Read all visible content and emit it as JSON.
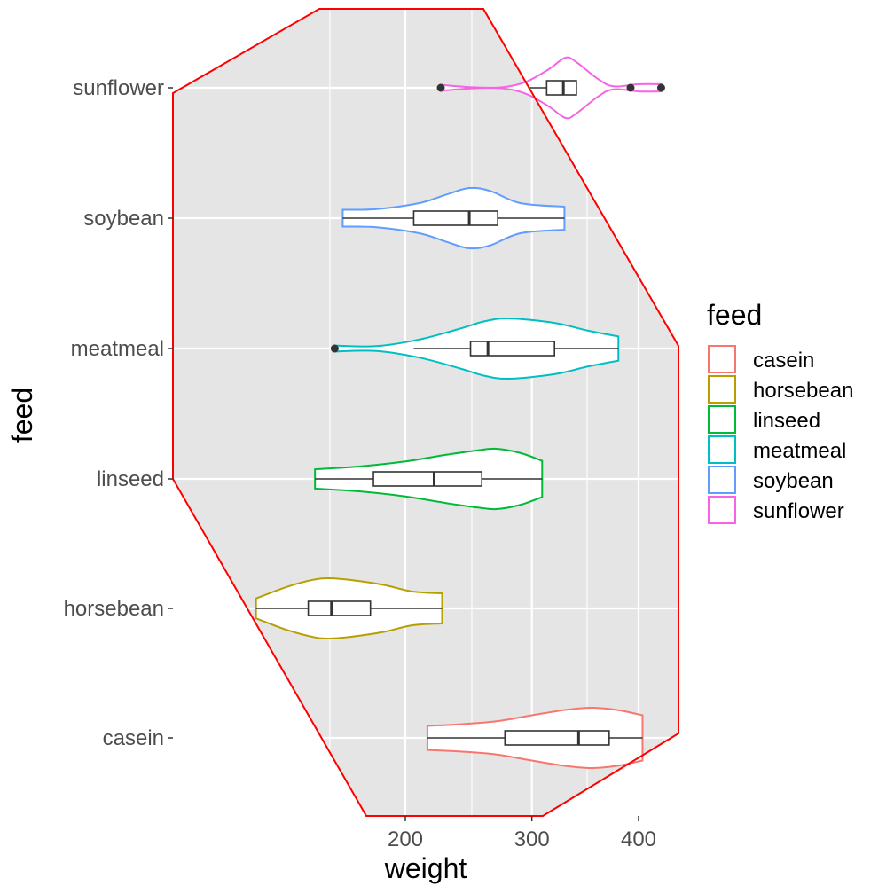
{
  "chart_data": {
    "type": "violin",
    "title": "",
    "xlabel": "weight",
    "ylabel": "feed",
    "x_scale": "sqrt",
    "xlim": [
      130,
      450
    ],
    "x_ticks": [
      200,
      300,
      400
    ],
    "x_tick_labels": [
      "200",
      "300",
      "400"
    ],
    "categories": [
      "casein",
      "horsebean",
      "linseed",
      "meatmeal",
      "soybean",
      "sunflower"
    ],
    "legend": {
      "title": "feed",
      "position": "right",
      "labels": [
        "casein",
        "horsebean",
        "linseed",
        "meatmeal",
        "soybean",
        "sunflower"
      ]
    },
    "series": [
      {
        "name": "casein",
        "color": "#F8766D",
        "violin": [
          [
            216,
            0.4
          ],
          [
            240,
            0.45
          ],
          [
            270,
            0.55
          ],
          [
            300,
            0.75
          ],
          [
            330,
            0.93
          ],
          [
            355,
            1.0
          ],
          [
            380,
            0.92
          ],
          [
            404,
            0.75
          ]
        ],
        "box": {
          "low": 216,
          "q1": 277,
          "median": 342,
          "q3": 371,
          "high": 404
        },
        "outliers": []
      },
      {
        "name": "horsebean",
        "color": "#B79F00",
        "violin": [
          [
            108,
            0.33
          ],
          [
            125,
            0.72
          ],
          [
            140,
            0.95
          ],
          [
            150,
            1.0
          ],
          [
            165,
            0.93
          ],
          [
            185,
            0.78
          ],
          [
            205,
            0.56
          ],
          [
            227,
            0.5
          ]
        ],
        "box": {
          "low": 108,
          "q1": 137,
          "median": 151,
          "q3": 176,
          "high": 227
        },
        "outliers": []
      },
      {
        "name": "linseed",
        "color": "#00BA38",
        "violin": [
          [
            141,
            0.32
          ],
          [
            170,
            0.42
          ],
          [
            200,
            0.58
          ],
          [
            230,
            0.8
          ],
          [
            255,
            0.95
          ],
          [
            270,
            1.0
          ],
          [
            290,
            0.86
          ],
          [
            309,
            0.6
          ]
        ],
        "box": {
          "low": 141,
          "q1": 178,
          "median": 221,
          "q3": 258,
          "high": 309
        },
        "outliers": []
      },
      {
        "name": "meatmeal",
        "color": "#00BFC4",
        "violin": [
          [
            153,
            0.1
          ],
          [
            180,
            0.08
          ],
          [
            210,
            0.3
          ],
          [
            240,
            0.65
          ],
          [
            260,
            0.9
          ],
          [
            280,
            1.0
          ],
          [
            320,
            0.85
          ],
          [
            350,
            0.6
          ],
          [
            380,
            0.4
          ]
        ],
        "box": {
          "low": 206,
          "q1": 249,
          "median": 263,
          "q3": 320,
          "high": 380
        },
        "outliers": [
          153
        ]
      },
      {
        "name": "soybean",
        "color": "#619CFF",
        "violin": [
          [
            158,
            0.28
          ],
          [
            180,
            0.3
          ],
          [
            210,
            0.5
          ],
          [
            230,
            0.78
          ],
          [
            248,
            1.0
          ],
          [
            265,
            0.9
          ],
          [
            290,
            0.5
          ],
          [
            329,
            0.38
          ]
        ],
        "box": {
          "low": 158,
          "q1": 206,
          "median": 248,
          "q3": 271,
          "high": 329
        },
        "outliers": []
      },
      {
        "name": "sunflower",
        "color": "#F564E3",
        "violin": [
          [
            226,
            0.1
          ],
          [
            250,
            0.02
          ],
          [
            275,
            0.02
          ],
          [
            295,
            0.2
          ],
          [
            315,
            0.62
          ],
          [
            330,
            1.0
          ],
          [
            340,
            0.85
          ],
          [
            360,
            0.3
          ],
          [
            375,
            0.05
          ],
          [
            400,
            0.12
          ],
          [
            423,
            0.12
          ]
        ],
        "box": {
          "low": 297,
          "q1": 313,
          "median": 328,
          "q3": 340,
          "high": 340
        },
        "outliers": [
          226,
          392,
          423
        ]
      }
    ]
  }
}
